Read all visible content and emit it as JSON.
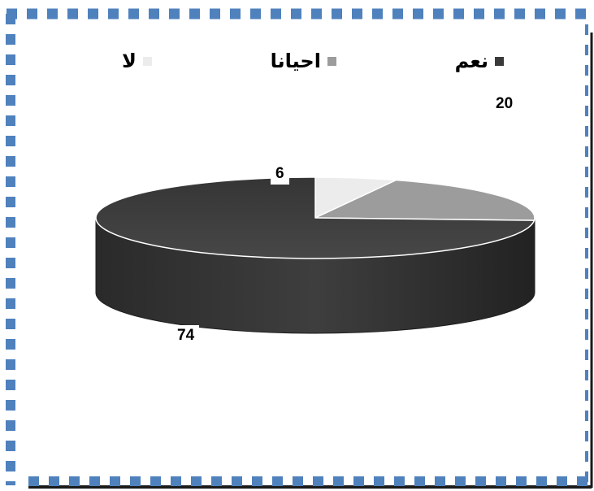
{
  "chart_data": {
    "type": "pie",
    "style": "3d",
    "categories": [
      "نعم",
      "احيانا",
      "لا"
    ],
    "values": [
      74,
      20,
      6
    ],
    "colors": [
      "#3a3a3a",
      "#9c9c9c",
      "#ececec"
    ],
    "legend_position": "top",
    "data_labels": true
  },
  "frame": {
    "dash_color": "#4f81bd",
    "shadow_color": "#1a1a1a"
  }
}
